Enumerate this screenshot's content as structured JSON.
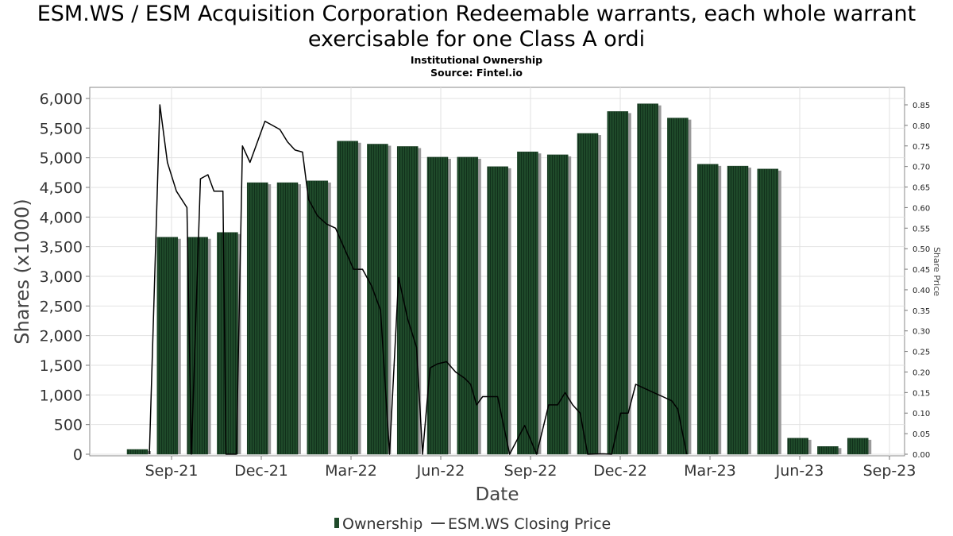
{
  "title": "ESM.WS / ESM Acquisition Corporation Redeemable warrants, each whole warrant exercisable for one Class A ordi",
  "subtitle": "Institutional Ownership",
  "source": "Source: Fintel.io",
  "chart_data": {
    "type": "bar",
    "xlabel": "Date",
    "ylabel": "Shares (x1000)",
    "y2label": "Share Price",
    "ylim": [
      0,
      6000
    ],
    "y2lim": [
      0,
      0.85
    ],
    "yticks": [
      "0",
      "500",
      "1,000",
      "1,500",
      "2,000",
      "2,500",
      "3,000",
      "3,500",
      "4,000",
      "4,500",
      "5,000",
      "5,500",
      "6,000"
    ],
    "y2ticks": [
      "0.00",
      "0.05",
      "0.10",
      "0.15",
      "0.20",
      "0.25",
      "0.30",
      "0.35",
      "0.40",
      "0.45",
      "0.50",
      "0.55",
      "0.60",
      "0.65",
      "0.70",
      "0.75",
      "0.80",
      "0.85"
    ],
    "xticks": [
      "Sep-21",
      "Dec-21",
      "Mar-22",
      "Jun-22",
      "Sep-22",
      "Dec-22",
      "Mar-23",
      "Jun-23",
      "Sep-23"
    ],
    "grid": true,
    "legend_position": "bottom",
    "series": [
      {
        "name": "Ownership",
        "color": "#1f4a2a",
        "values": [
          80,
          3660,
          3660,
          3740,
          4580,
          4580,
          4610,
          5280,
          5230,
          5190,
          5010,
          5010,
          4850,
          5100,
          5050,
          5410,
          5780,
          5910,
          5670,
          4890,
          4860,
          4810,
          270,
          130,
          270
        ]
      },
      {
        "name": "ESM.WS Closing Price",
        "color": "#000000",
        "points": [
          [
            0.4,
            0.0
          ],
          [
            0.75,
            0.85
          ],
          [
            1.0,
            0.71
          ],
          [
            1.3,
            0.64
          ],
          [
            1.65,
            0.6
          ],
          [
            1.8,
            0.0
          ],
          [
            2.1,
            0.67
          ],
          [
            2.35,
            0.68
          ],
          [
            2.55,
            0.64
          ],
          [
            2.85,
            0.64
          ],
          [
            2.95,
            0.0
          ],
          [
            3.3,
            0.0
          ],
          [
            3.5,
            0.75
          ],
          [
            3.75,
            0.71
          ],
          [
            4.0,
            0.76
          ],
          [
            4.25,
            0.81
          ],
          [
            4.5,
            0.8
          ],
          [
            4.75,
            0.79
          ],
          [
            5.0,
            0.76
          ],
          [
            5.25,
            0.74
          ],
          [
            5.5,
            0.735
          ],
          [
            5.7,
            0.62
          ],
          [
            6.0,
            0.58
          ],
          [
            6.3,
            0.56
          ],
          [
            6.6,
            0.55
          ],
          [
            6.9,
            0.5
          ],
          [
            7.2,
            0.45
          ],
          [
            7.5,
            0.45
          ],
          [
            7.8,
            0.41
          ],
          [
            8.1,
            0.35
          ],
          [
            8.4,
            0.0
          ],
          [
            8.7,
            0.43
          ],
          [
            9.0,
            0.33
          ],
          [
            9.3,
            0.26
          ],
          [
            9.5,
            0.0
          ],
          [
            9.75,
            0.21
          ],
          [
            10.0,
            0.22
          ],
          [
            10.3,
            0.225
          ],
          [
            10.6,
            0.2
          ],
          [
            10.9,
            0.185
          ],
          [
            11.1,
            0.17
          ],
          [
            11.3,
            0.12
          ],
          [
            11.5,
            0.14
          ],
          [
            11.7,
            0.14
          ],
          [
            12.0,
            0.14
          ],
          [
            12.4,
            0.0
          ],
          [
            12.9,
            0.07
          ],
          [
            13.3,
            0.0
          ],
          [
            13.7,
            0.12
          ],
          [
            14.0,
            0.12
          ],
          [
            14.25,
            0.15
          ],
          [
            14.5,
            0.12
          ],
          [
            14.75,
            0.1
          ],
          [
            15.0,
            0.0
          ],
          [
            15.5,
            0.001
          ],
          [
            15.8,
            0.0
          ],
          [
            16.1,
            0.1
          ],
          [
            16.35,
            0.1
          ],
          [
            16.6,
            0.17
          ],
          [
            16.9,
            0.16
          ],
          [
            17.2,
            0.15
          ],
          [
            17.5,
            0.14
          ],
          [
            17.8,
            0.13
          ],
          [
            18.0,
            0.11
          ],
          [
            18.3,
            0.0
          ]
        ]
      }
    ]
  }
}
